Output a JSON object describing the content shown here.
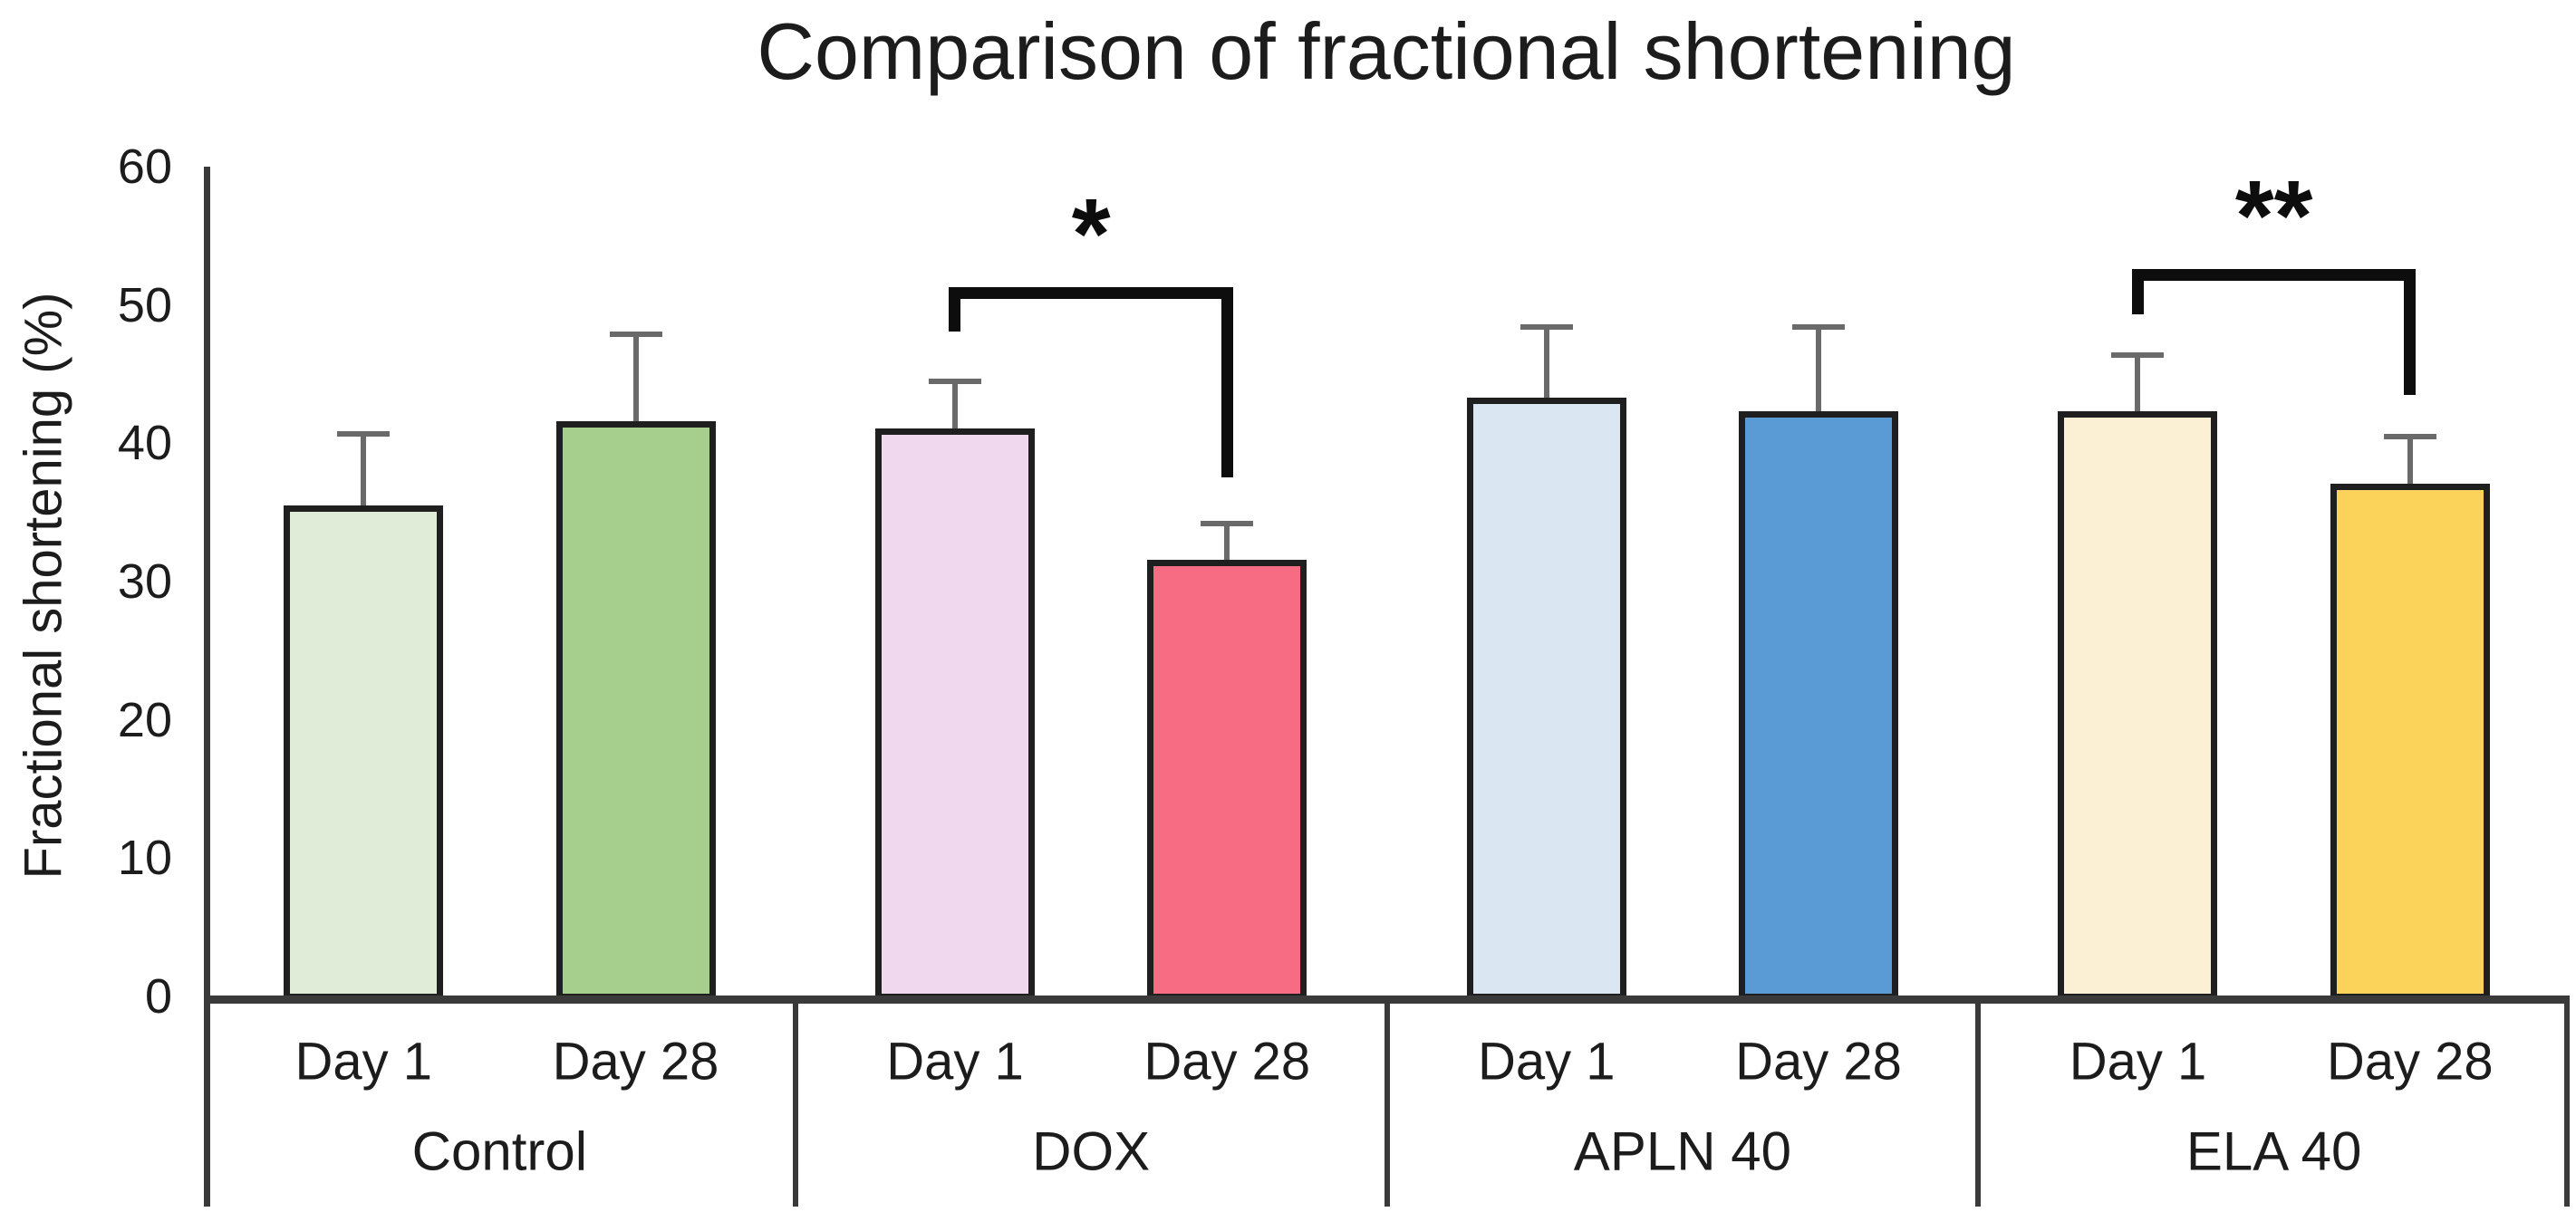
{
  "title": "Comparison of fractional shortening",
  "y_axis": {
    "label": "Fractional shortening (%)",
    "ticks": [
      60,
      50,
      40,
      30,
      20,
      10,
      0
    ],
    "min": 0,
    "max": 60
  },
  "chart_data": {
    "type": "bar",
    "title": "Comparison of fractional shortening",
    "xlabel": "",
    "ylabel": "Fractional shortening (%)",
    "ylim": [
      0,
      60
    ],
    "yticks": [
      0,
      10,
      20,
      30,
      40,
      50,
      60
    ],
    "grid": false,
    "legend": false,
    "error_bars": true,
    "categories_per_group": [
      "Day 1",
      "Day 28"
    ],
    "groups": [
      {
        "label": "Control",
        "bars": [
          {
            "label": "Day 1",
            "value": 35.5,
            "error": 5.2,
            "color": "#e0ecd8"
          },
          {
            "label": "Day 28",
            "value": 41.6,
            "error": 6.3,
            "color": "#a6cf8d"
          }
        ]
      },
      {
        "label": "DOX",
        "bars": [
          {
            "label": "Day 1",
            "value": 41.1,
            "error": 3.4,
            "color": "#f0d9ee"
          },
          {
            "label": "Day 28",
            "value": 31.6,
            "error": 2.6,
            "color": "#f76c82"
          }
        ],
        "significance": {
          "label": "*",
          "bar_y": 51.3,
          "left_drop_to": 48.1,
          "right_drop_to": 37.5
        }
      },
      {
        "label": "APLN 40",
        "bars": [
          {
            "label": "Day 1",
            "value": 43.3,
            "error": 5.1,
            "color": "#dae6f2"
          },
          {
            "label": "Day 28",
            "value": 42.3,
            "error": 6.1,
            "color": "#5b9bd5"
          }
        ]
      },
      {
        "label": "ELA 40",
        "bars": [
          {
            "label": "Day 1",
            "value": 42.3,
            "error": 4.1,
            "color": "#fbf0d3"
          },
          {
            "label": "Day 28",
            "value": 37.1,
            "error": 3.4,
            "color": "#fbd35a"
          }
        ],
        "significance": {
          "label": "**",
          "bar_y": 52.6,
          "left_drop_to": 49.3,
          "right_drop_to": 43.5
        }
      }
    ],
    "colors": {
      "bar_border": "#1f1f1f",
      "error_bar": "#6a6a6a",
      "axis": "#3a3a3a",
      "bracket": "#0d0d0d"
    }
  }
}
